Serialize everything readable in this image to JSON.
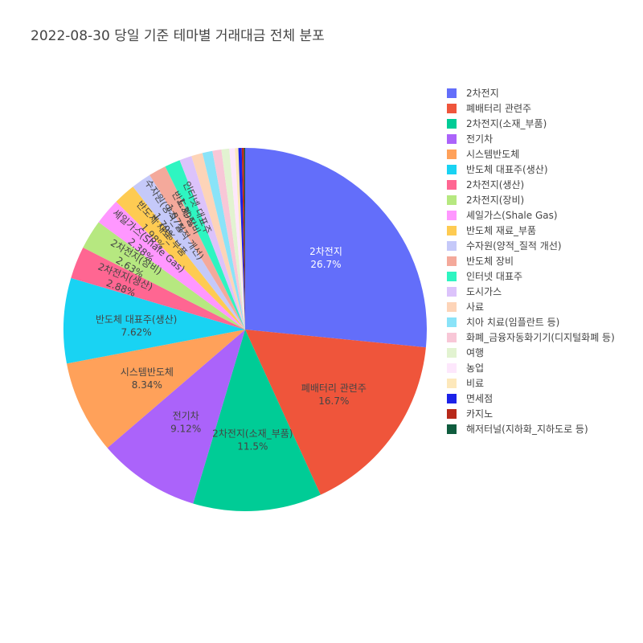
{
  "chart_data": {
    "type": "pie",
    "title": "2022-08-30 당일 기준 테마별 거래대금 전체 분포",
    "legend_position": "right",
    "slices": [
      {
        "label": "2차전지",
        "value": 26.7,
        "pct_text": "26.7%",
        "color": "#636efa"
      },
      {
        "label": "폐배터리 관련주",
        "value": 16.7,
        "pct_text": "16.7%",
        "color": "#EF553B"
      },
      {
        "label": "2차전지(소재_부품)",
        "value": 11.5,
        "pct_text": "11.5%",
        "color": "#00cc96"
      },
      {
        "label": "전기차",
        "value": 9.12,
        "pct_text": "9.12%",
        "color": "#ab63fa"
      },
      {
        "label": "시스템반도체",
        "value": 8.34,
        "pct_text": "8.34%",
        "color": "#FFA15A"
      },
      {
        "label": "반도체 대표주(생산)",
        "value": 7.62,
        "pct_text": "7.62%",
        "color": "#19d3f3"
      },
      {
        "label": "2차전지(생산)",
        "value": 2.88,
        "pct_text": "2.88%",
        "color": "#FF6692"
      },
      {
        "label": "2차전지(장비)",
        "value": 2.63,
        "pct_text": "2.63%",
        "color": "#B6E880"
      },
      {
        "label": "셰일가스(Shale Gas)",
        "value": 2.38,
        "pct_text": "2.38%",
        "color": "#FF97FF"
      },
      {
        "label": "반도체 재료_부품",
        "value": 1.98,
        "pct_text": "1.98%",
        "color": "#FECB52"
      },
      {
        "label": "수자원(양적_질적 개선)",
        "value": 1.79,
        "pct_text": "1.79%",
        "color": "#c5c9f9"
      },
      {
        "label": "반도체 장비",
        "value": 1.57,
        "pct_text": "1.57%",
        "color": "#f4a99b"
      },
      {
        "label": "인터넷 대표주",
        "value": 1.39,
        "pct_text": "1.39%",
        "color": "#2ef5c1"
      },
      {
        "label": "도시가스",
        "value": 1.1,
        "pct_text": "",
        "color": "#dcc3fb"
      },
      {
        "label": "사료",
        "value": 1.0,
        "pct_text": "",
        "color": "#fdd4b8"
      },
      {
        "label": "치아 치료(임플란트 등)",
        "value": 0.9,
        "pct_text": "",
        "color": "#8ae3f8"
      },
      {
        "label": "화폐_금융자동화기기(디지털화폐 등)",
        "value": 0.8,
        "pct_text": "",
        "color": "#f8c7d7"
      },
      {
        "label": "여행",
        "value": 0.7,
        "pct_text": "",
        "color": "#e2f3d1"
      },
      {
        "label": "농업",
        "value": 0.5,
        "pct_text": "",
        "color": "#fde7fc"
      },
      {
        "label": "비료",
        "value": 0.3,
        "pct_text": "",
        "color": "#fde8bb"
      },
      {
        "label": "면세점",
        "value": 0.3,
        "pct_text": "",
        "color": "#1c22e8"
      },
      {
        "label": "카지노",
        "value": 0.2,
        "pct_text": "",
        "color": "#b7291a"
      },
      {
        "label": "해저터널(지하화_지하도로 등)",
        "value": 0.1,
        "pct_text": "",
        "color": "#0f5c3e"
      }
    ]
  }
}
